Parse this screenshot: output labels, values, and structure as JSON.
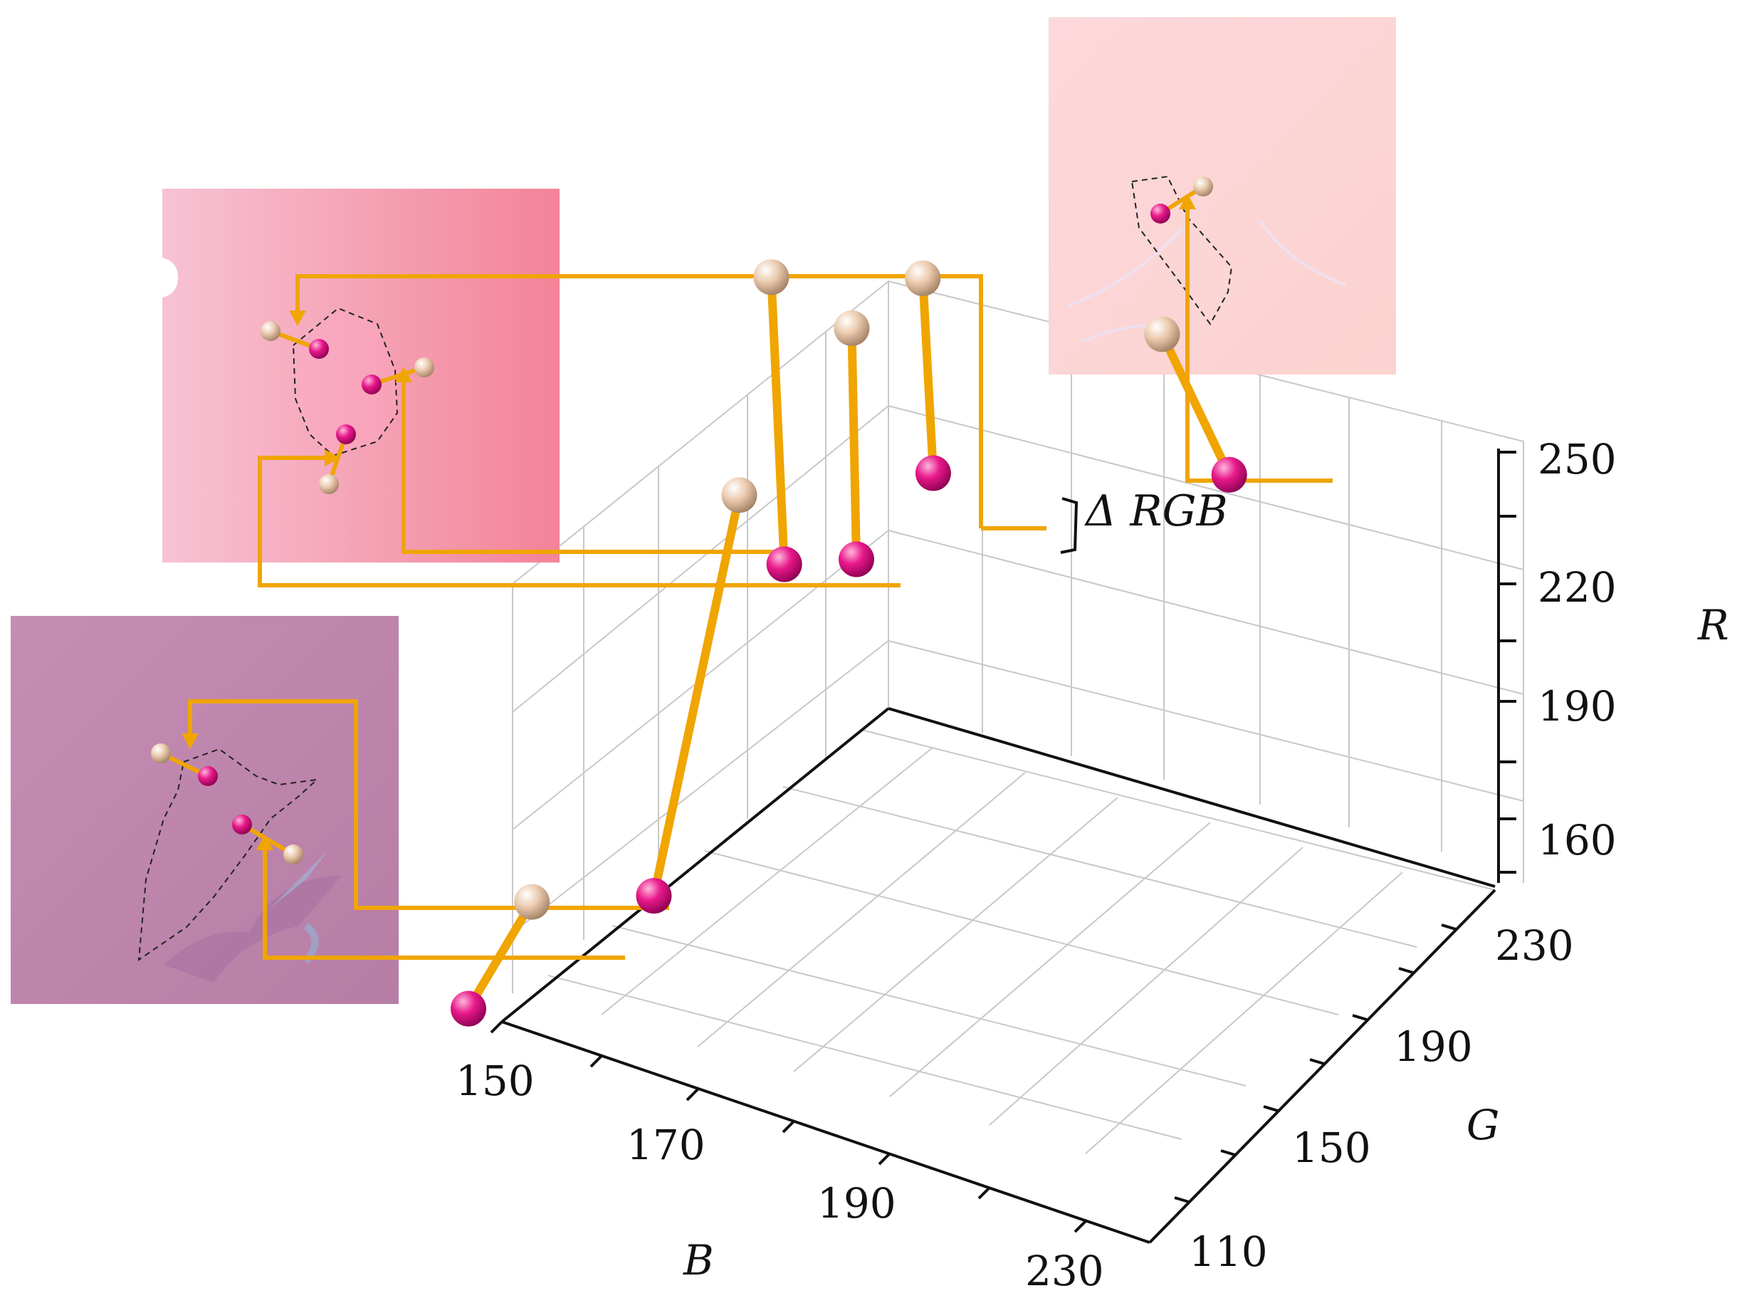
{
  "chart_data": {
    "type": "scatter",
    "title": "",
    "projection": "3d",
    "axes": {
      "B": {
        "label": "B",
        "ticks": [
          "150",
          "170",
          "190",
          "230"
        ],
        "range": [
          150,
          230
        ]
      },
      "G": {
        "label": "G",
        "ticks": [
          "110",
          "150",
          "190",
          "230"
        ],
        "range": [
          110,
          230
        ]
      },
      "R": {
        "label": "R",
        "ticks": [
          "160",
          "190",
          "220",
          "250"
        ],
        "range": [
          160,
          250
        ]
      }
    },
    "grid": true,
    "annotation": "Δ RGB",
    "pairs": [
      {
        "group": "bottom-left image",
        "top_point": [
          158,
          170,
          222
        ],
        "bottom_point": [
          151,
          160,
          158
        ]
      },
      {
        "group": "bottom-left image",
        "top_point": [
          153,
          112,
          180
        ],
        "bottom_point": [
          148,
          104,
          164
        ]
      },
      {
        "group": "top-left image",
        "top_point": [
          152,
          198,
          242
        ],
        "bottom_point": [
          160,
          180,
          207
        ]
      },
      {
        "group": "top-left image",
        "top_point": [
          163,
          195,
          240
        ],
        "bottom_point": [
          165,
          191,
          205
        ]
      },
      {
        "group": "top-left image",
        "top_point": [
          170,
          200,
          249
        ],
        "bottom_point": [
          172,
          198,
          219
        ]
      },
      {
        "group": "top-right image",
        "top_point": [
          196,
          210,
          247
        ],
        "bottom_point": [
          205,
          208,
          229
        ]
      }
    ],
    "colors": {
      "top_point": "#e8c4a4",
      "bottom_point": "#e8198a",
      "connector": "#f0a500"
    }
  }
}
